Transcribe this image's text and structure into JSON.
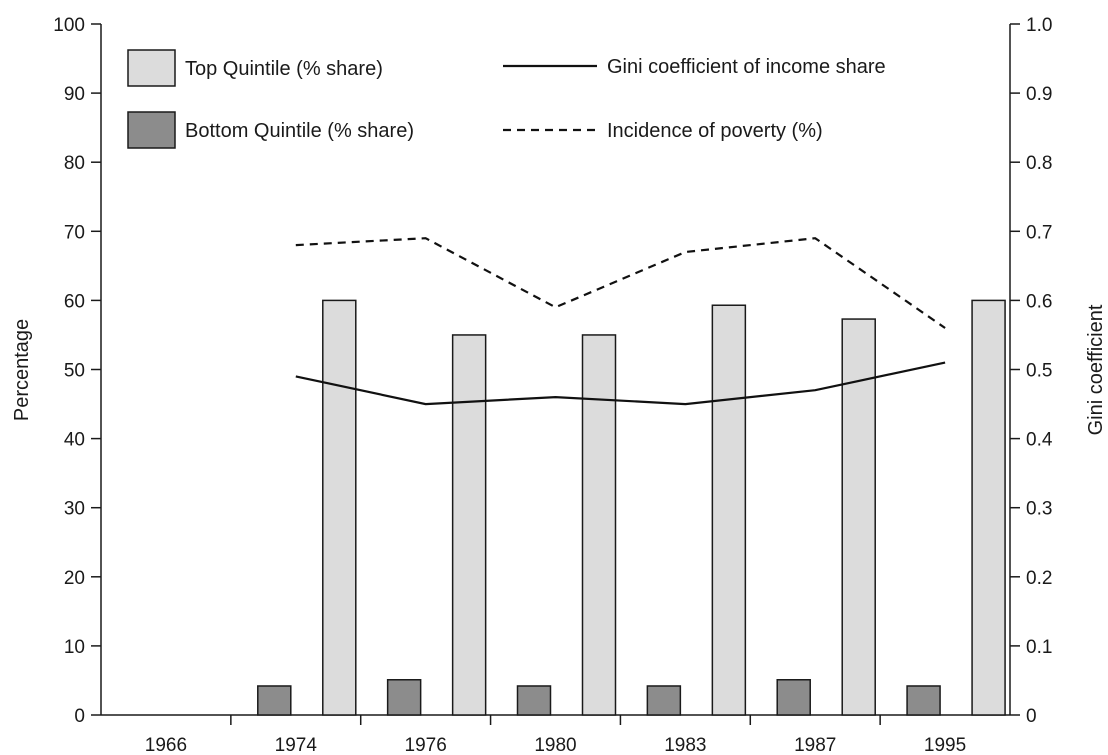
{
  "chart_data": {
    "type": "bar",
    "categories": [
      "1966",
      "1974",
      "1976",
      "1980",
      "1983",
      "1987",
      "1995"
    ],
    "series": [
      {
        "name": "Bottom Quintile (% share)",
        "kind": "bar",
        "axis": "left",
        "color": "#8c8c8c",
        "values": [
          null,
          4.2,
          5.1,
          4.2,
          4.2,
          5.1,
          4.2
        ]
      },
      {
        "name": "Top Quintile (% share)",
        "kind": "bar",
        "axis": "left",
        "color": "#dcdcdc",
        "values": [
          null,
          60,
          55,
          55,
          59.3,
          57.3,
          60
        ]
      },
      {
        "name": "Gini coefficient of income share",
        "kind": "line",
        "style": "solid",
        "axis": "right",
        "color": "#111111",
        "values": [
          null,
          0.49,
          0.45,
          0.46,
          0.45,
          0.47,
          0.51
        ]
      },
      {
        "name": "Incidence of poverty (%)",
        "kind": "line",
        "style": "dashed",
        "axis": "left",
        "color": "#111111",
        "values": [
          null,
          68,
          69,
          59,
          67,
          69,
          56
        ]
      }
    ],
    "ylabel": "Percentage",
    "ylim": [
      0,
      100
    ],
    "yticks": [
      "0",
      "10",
      "20",
      "30",
      "40",
      "50",
      "60",
      "70",
      "80",
      "90",
      "100"
    ],
    "y2label": "Gini coefficient",
    "y2lim": [
      0,
      1.0
    ],
    "y2ticks": [
      "0",
      "0.1",
      "0.2",
      "0.3",
      "0.4",
      "0.5",
      "0.6",
      "0.7",
      "0.8",
      "0.9",
      "1.0"
    ],
    "legend_position": "top",
    "grid": false
  }
}
